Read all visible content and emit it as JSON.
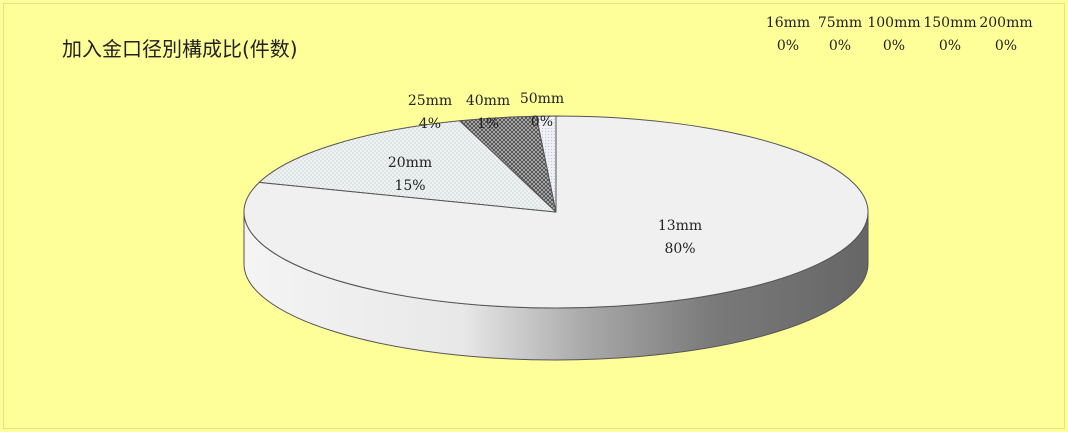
{
  "chart_data": {
    "type": "pie",
    "title": "加入金口径別構成比(件数)",
    "slices": [
      {
        "name": "13mm",
        "value": 80,
        "label": "80%"
      },
      {
        "name": "16mm",
        "value": 0,
        "label": "0%"
      },
      {
        "name": "20mm",
        "value": 15,
        "label": "15%"
      },
      {
        "name": "25mm",
        "value": 4,
        "label": "4%"
      },
      {
        "name": "40mm",
        "value": 1,
        "label": "1%"
      },
      {
        "name": "50mm",
        "value": 0,
        "label": "0%"
      },
      {
        "name": "75mm",
        "value": 0,
        "label": "0%"
      },
      {
        "name": "100mm",
        "value": 0,
        "label": "0%"
      },
      {
        "name": "150mm",
        "value": 0,
        "label": "0%"
      },
      {
        "name": "200mm",
        "value": 0,
        "label": "0%"
      }
    ]
  },
  "colors": {
    "background": "#ffff99",
    "top_13mm": "#f0f0f0",
    "slice_20mm": "#eef2f2",
    "slice_25mm": "#9e9e9e",
    "slice_40mm": "#e4e8f0",
    "side_dark": "#555555",
    "side_light": "#f2f2f2"
  }
}
